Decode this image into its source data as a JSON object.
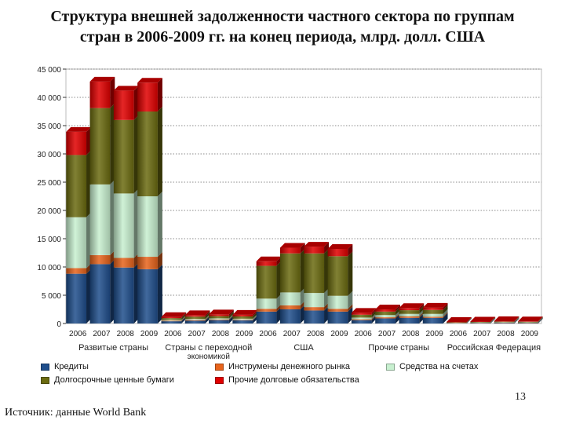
{
  "title_lines": [
    "Структура внешней задолженности частного сектора по группам",
    "стран в 2006-2009 гг. на конец периода, млрд. долл. США"
  ],
  "page_number": "13",
  "source": "Источник: данные World Bank",
  "colors": {
    "credits": "#1f4e8c",
    "money_market": "#e8641c",
    "deposits": "#c8f0d0",
    "long_term": "#6b6b10",
    "other": "#e00000"
  },
  "chart_data": {
    "type": "stacked-bar-3d",
    "ylim": [
      0,
      45000
    ],
    "yticks": [
      0,
      5000,
      10000,
      15000,
      20000,
      25000,
      30000,
      35000,
      40000,
      45000
    ],
    "ytick_labels": [
      "0",
      "5 000",
      "10 000",
      "15 000",
      "20 000",
      "25 000",
      "30 000",
      "35 000",
      "40 000",
      "45 000"
    ],
    "grid": true,
    "legend_position": "bottom",
    "groups": [
      {
        "name": "Развитые страны",
        "name_lines": [
          "Развитые страны"
        ],
        "years": [
          "2006",
          "2007",
          "2008",
          "2009"
        ]
      },
      {
        "name": "Страны с переходной экономикой",
        "name_lines": [
          "Страны с переходной",
          "экономикой"
        ],
        "years": [
          "2006",
          "2007",
          "2008",
          "2009"
        ]
      },
      {
        "name": "США",
        "name_lines": [
          "США"
        ],
        "years": [
          "2006",
          "2007",
          "2008",
          "2009"
        ]
      },
      {
        "name": "Прочие страны",
        "name_lines": [
          "Прочие страны"
        ],
        "years": [
          "2006",
          "2007",
          "2008",
          "2009"
        ]
      },
      {
        "name": "Российская Федерация",
        "name_lines": [
          "Российская Федерация"
        ],
        "years": [
          "2006",
          "2007",
          "2008",
          "2009"
        ]
      }
    ],
    "series": [
      {
        "name": "Кредиты",
        "color_key": "credits",
        "values": [
          8800,
          10500,
          9900,
          9600,
          400,
          500,
          600,
          550,
          2100,
          2500,
          2300,
          2100,
          600,
          900,
          1000,
          1000,
          80,
          100,
          130,
          120
        ]
      },
      {
        "name": "Инструмены денежного рынка",
        "color_key": "money_market",
        "values": [
          1000,
          1600,
          1700,
          2200,
          100,
          120,
          110,
          100,
          500,
          700,
          600,
          500,
          150,
          200,
          250,
          200,
          20,
          30,
          30,
          25
        ]
      },
      {
        "name": "Средства на счетах",
        "color_key": "deposits",
        "values": [
          9000,
          12500,
          11400,
          10700,
          150,
          200,
          200,
          200,
          1800,
          2300,
          2500,
          2300,
          300,
          400,
          450,
          500,
          30,
          50,
          60,
          55
        ]
      },
      {
        "name": "Долгосрочные ценные бумаги",
        "color_key": "long_term",
        "values": [
          11000,
          13500,
          13000,
          15000,
          300,
          400,
          400,
          400,
          5800,
          6900,
          7000,
          7000,
          500,
          600,
          650,
          700,
          80,
          100,
          110,
          110
        ]
      },
      {
        "name": "Прочие долговые обязательства",
        "color_key": "other",
        "values": [
          4100,
          4700,
          5200,
          5100,
          200,
          250,
          300,
          300,
          800,
          1000,
          1200,
          1300,
          350,
          400,
          400,
          400,
          60,
          70,
          80,
          80
        ]
      }
    ]
  }
}
